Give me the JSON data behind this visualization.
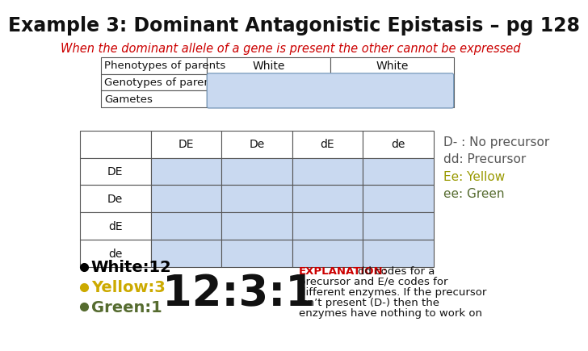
{
  "title": "Example 3: Dominant Antagonistic Epistasis – pg 128",
  "subtitle": "When the dominant allele of a gene is present the other cannot be expressed",
  "subtitle_color": "#cc0000",
  "top_table_row_labels": [
    "Phenotypes of parents",
    "Genotypes of parents",
    "Gametes"
  ],
  "top_table_row1_vals": [
    "White",
    "White"
  ],
  "punnett_headers": [
    "",
    "DE",
    "De",
    "dE",
    "de"
  ],
  "punnett_rows": [
    "DE",
    "De",
    "dE",
    "de"
  ],
  "cell_fill": "#c9d9f0",
  "header_fill": "#ffffff",
  "border_color": "#555555",
  "legend_lines": [
    {
      "text": "D- : No precursor",
      "color": "#555555"
    },
    {
      "text": "dd: Precursor",
      "color": "#555555"
    },
    {
      "text": "Ee: Yellow",
      "color": "#999900"
    },
    {
      "text": "ee: Green",
      "color": "#556b2f"
    }
  ],
  "ratio_text": "12:3:1",
  "bullets": [
    {
      "text": "White:12",
      "color": "#000000",
      "bullet_color": "#000000"
    },
    {
      "text": "Yellow:3",
      "color": "#ccaa00",
      "bullet_color": "#ccaa00"
    },
    {
      "text": "Green:1",
      "color": "#556b2f",
      "bullet_color": "#556b2f"
    }
  ],
  "explanation_label": "EXPLANATION:",
  "explanation_label_color": "#cc0000",
  "explanation_lines": [
    "dd codes for a",
    "precursor and E/e codes for",
    "different enzymes. If the precursor",
    "isn’t present (D-) then the",
    "enzymes have nothing to work on"
  ],
  "bg_color": "#ffffff"
}
